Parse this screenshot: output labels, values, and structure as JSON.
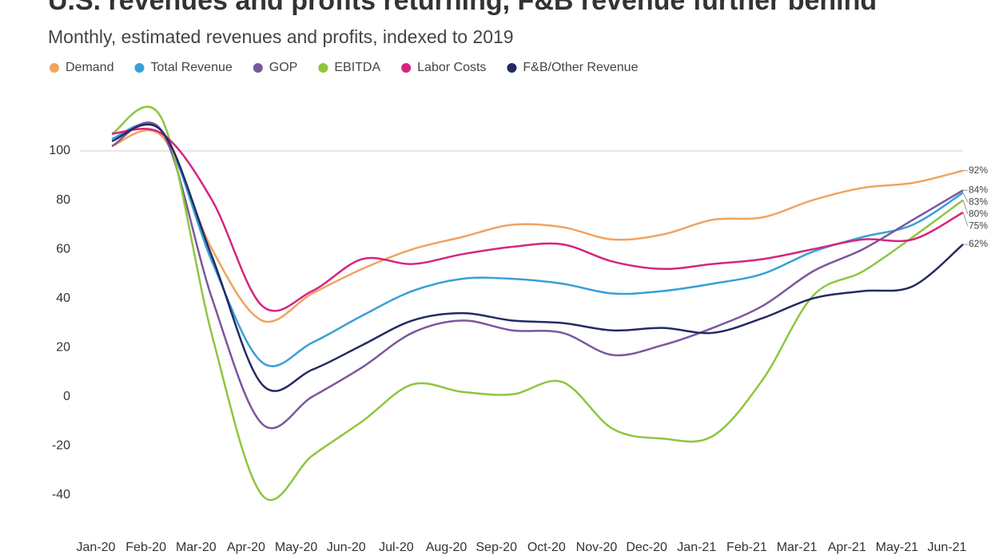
{
  "chart_data": {
    "type": "line",
    "title": "U.S. revenues and profits returning, F&B revenue further behind",
    "subtitle": "Monthly, estimated revenues and profits, indexed to 2019",
    "categories": [
      "Jan-20",
      "Feb-20",
      "Mar-20",
      "Apr-20",
      "May-20",
      "Jun-20",
      "Jul-20",
      "Aug-20",
      "Sep-20",
      "Oct-20",
      "Nov-20",
      "Dec-20",
      "Jan-21",
      "Feb-21",
      "Mar-21",
      "Apr-21",
      "May-21",
      "Jun-21"
    ],
    "ylim": [
      -40,
      100
    ],
    "yticks": [
      100,
      80,
      60,
      40,
      20,
      0,
      -20,
      -40
    ],
    "grid_lines": [
      100
    ],
    "series": [
      {
        "name": "Demand",
        "color": "#f0a35e",
        "values": [
          102,
          106,
          60,
          31,
          42,
          52,
          60,
          65,
          70,
          69,
          64,
          66,
          72,
          73,
          80,
          85,
          87,
          92
        ],
        "value_labels": [
          null,
          null,
          null,
          null,
          null,
          null,
          null,
          null,
          null,
          null,
          null,
          null,
          null,
          null,
          null,
          null,
          null,
          "92%"
        ]
      },
      {
        "name": "Total Revenue",
        "color": "#3a9fd6",
        "values": [
          105,
          108,
          55,
          14,
          22,
          33,
          43,
          48,
          48,
          46,
          42,
          43,
          46,
          50,
          59,
          65,
          70,
          83
        ],
        "value_labels": [
          null,
          null,
          null,
          null,
          null,
          null,
          null,
          null,
          null,
          null,
          null,
          null,
          null,
          null,
          null,
          null,
          null,
          "83%"
        ]
      },
      {
        "name": "GOP",
        "color": "#7b579e",
        "values": [
          102,
          108,
          40,
          -11,
          0,
          12,
          26,
          31,
          27,
          26,
          17,
          21,
          28,
          37,
          51,
          60,
          72,
          84
        ],
        "value_labels": [
          null,
          null,
          null,
          null,
          null,
          null,
          null,
          null,
          null,
          null,
          null,
          null,
          null,
          null,
          null,
          null,
          null,
          "84%"
        ]
      },
      {
        "name": "EBITDA",
        "color": "#8dc63f",
        "values": [
          107,
          113,
          25,
          -40,
          -24,
          -10,
          5,
          2,
          1,
          6,
          -13,
          -17,
          -16,
          7,
          41,
          51,
          65,
          80
        ],
        "value_labels": [
          null,
          null,
          null,
          null,
          null,
          null,
          null,
          null,
          null,
          null,
          null,
          null,
          null,
          null,
          null,
          null,
          null,
          "80%"
        ]
      },
      {
        "name": "Labor Costs",
        "color": "#d6247f",
        "values": [
          107,
          107,
          80,
          37,
          43,
          56,
          54,
          58,
          61,
          62,
          55,
          52,
          54,
          56,
          60,
          64,
          64,
          75
        ],
        "value_labels": [
          null,
          null,
          null,
          null,
          null,
          null,
          null,
          null,
          null,
          null,
          null,
          null,
          null,
          null,
          null,
          null,
          null,
          "75%"
        ]
      },
      {
        "name": "F&B/Other Revenue",
        "color": "#232a63",
        "values": [
          104,
          108,
          57,
          5,
          11,
          21,
          31,
          34,
          31,
          30,
          27,
          28,
          26,
          32,
          40,
          43,
          45,
          62
        ],
        "value_labels": [
          null,
          null,
          null,
          null,
          null,
          null,
          null,
          null,
          null,
          null,
          null,
          null,
          null,
          null,
          null,
          null,
          null,
          "62%"
        ]
      }
    ]
  }
}
